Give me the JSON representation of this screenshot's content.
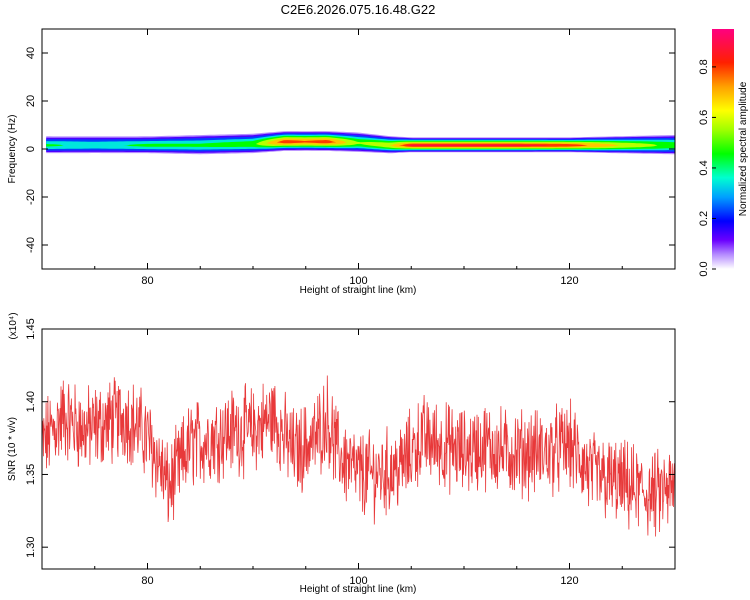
{
  "title": "C2E6.2026.075.16.48.G22",
  "chart_data": [
    {
      "type": "heatmap",
      "xlabel": "Height of straight line (km)",
      "ylabel": "Frequency (Hz)",
      "xlim": [
        70,
        130
      ],
      "ylim": [
        -50,
        50
      ],
      "xticks": [
        80,
        100,
        120
      ],
      "yticks": [
        -40,
        -20,
        0,
        20,
        40
      ],
      "colorbar": {
        "label": "Normalized spectral amplitude",
        "range": [
          0,
          0.95
        ],
        "ticks": [
          0.0,
          0.2,
          0.4,
          0.6,
          0.8
        ]
      },
      "ridge": {
        "x": [
          70,
          75,
          80,
          85,
          90,
          93,
          95,
          97,
          100,
          103,
          105,
          110,
          115,
          120,
          125,
          130
        ],
        "freq": [
          1.5,
          1.5,
          1.5,
          1.5,
          2.0,
          3.0,
          3.0,
          3.0,
          2.5,
          1.5,
          1.5,
          1.5,
          1.5,
          1.5,
          1.5,
          1.5
        ],
        "halfwidth": [
          3.5,
          3.5,
          3.5,
          4.0,
          4.0,
          4.0,
          4.0,
          4.0,
          4.0,
          3.5,
          3.0,
          3.0,
          3.0,
          3.0,
          3.5,
          4.0
        ],
        "peak": [
          0.5,
          0.45,
          0.5,
          0.5,
          0.55,
          0.9,
          0.85,
          0.9,
          0.6,
          0.7,
          0.95,
          0.95,
          0.95,
          0.9,
          0.7,
          0.55
        ]
      }
    },
    {
      "type": "line",
      "xlabel": "Height of straight line (km)",
      "ylabel": "SNR (10 * v/v)",
      "ylabel_multiplier": "(x10⁴)",
      "xlim": [
        70,
        130
      ],
      "ylim": [
        1.285,
        1.45
      ],
      "xticks": [
        80,
        100,
        120
      ],
      "yticks": [
        1.3,
        1.35,
        1.4,
        1.45
      ],
      "series": [
        {
          "color": "#e8393a",
          "x": [
            70,
            72,
            74,
            76,
            78,
            80,
            81,
            82,
            84,
            86,
            88,
            90,
            91,
            92,
            93,
            94,
            96,
            97,
            98,
            100,
            102,
            104,
            106,
            108,
            110,
            112,
            114,
            116,
            118,
            120,
            122,
            124,
            126,
            128,
            130
          ],
          "y": [
            1.37,
            1.39,
            1.38,
            1.385,
            1.39,
            1.375,
            1.36,
            1.34,
            1.37,
            1.375,
            1.38,
            1.38,
            1.385,
            1.39,
            1.375,
            1.365,
            1.375,
            1.39,
            1.365,
            1.35,
            1.35,
            1.355,
            1.375,
            1.37,
            1.365,
            1.37,
            1.365,
            1.365,
            1.365,
            1.37,
            1.35,
            1.345,
            1.34,
            1.335,
            1.34
          ]
        }
      ]
    }
  ]
}
